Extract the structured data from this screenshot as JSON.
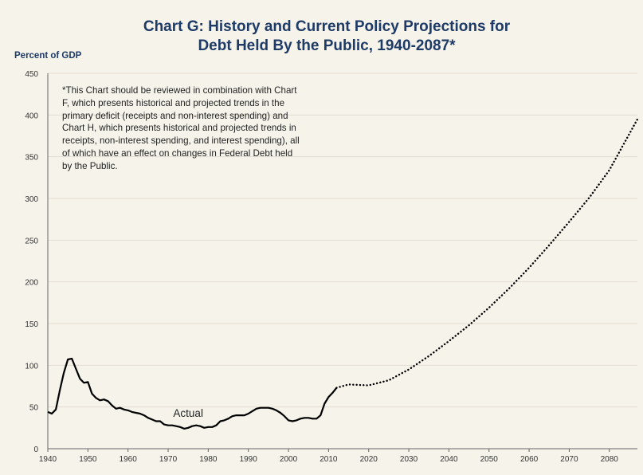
{
  "title_line1": "Chart G:  History and Current Policy Projections for",
  "title_line2": "Debt Held By the Public, 1940-2087*",
  "y_unit": "Percent of GDP",
  "note": "*This Chart should be reviewed in combination with Chart F, which presents historical and projected trends in the primary deficit (receipts and non-interest spending) and Chart H, which presents historical and projected trends in receipts,  non-interest spending, and interest spending), all of which have an effect on  changes in Federal Debt held by the Public.",
  "colors": {
    "background": "#f6f3ea",
    "title": "#1e3a66",
    "line": "#000000",
    "grid": "#e1ddd2",
    "axis": "#666666"
  },
  "chart_data": {
    "type": "line",
    "title": "Chart G:  History and Current Policy Projections for Debt Held By the Public, 1940-2087*",
    "ylabel": "Percent of GDP",
    "xlabel": "",
    "xlim": [
      1940,
      2087
    ],
    "ylim": [
      0,
      450
    ],
    "x_ticks": [
      1940,
      1950,
      1960,
      1970,
      1980,
      1990,
      2000,
      2010,
      2020,
      2030,
      2040,
      2050,
      2060,
      2070,
      2080
    ],
    "y_ticks": [
      0,
      50,
      100,
      150,
      200,
      250,
      300,
      350,
      400,
      450
    ],
    "grid": true,
    "annotations": [
      {
        "text": "Actual",
        "x": 1975,
        "y": 38
      }
    ],
    "series": [
      {
        "name": "Actual",
        "style": "solid",
        "x": [
          1940,
          1941,
          1942,
          1943,
          1944,
          1945,
          1946,
          1947,
          1948,
          1949,
          1950,
          1951,
          1952,
          1953,
          1954,
          1955,
          1956,
          1957,
          1958,
          1959,
          1960,
          1961,
          1962,
          1963,
          1964,
          1965,
          1966,
          1967,
          1968,
          1969,
          1970,
          1971,
          1972,
          1973,
          1974,
          1975,
          1976,
          1977,
          1978,
          1979,
          1980,
          1981,
          1982,
          1983,
          1984,
          1985,
          1986,
          1987,
          1988,
          1989,
          1990,
          1991,
          1992,
          1993,
          1994,
          1995,
          1996,
          1997,
          1998,
          1999,
          2000,
          2001,
          2002,
          2003,
          2004,
          2005,
          2006,
          2007,
          2008,
          2009,
          2010,
          2011,
          2012
        ],
        "y": [
          44,
          42,
          47,
          70,
          91,
          107,
          108,
          96,
          84,
          79,
          80,
          66,
          61,
          58,
          59,
          57,
          52,
          48,
          49,
          47,
          46,
          44,
          43,
          42,
          40,
          37,
          35,
          33,
          33,
          29,
          28,
          28,
          27,
          26,
          24,
          25,
          27,
          28,
          27,
          25,
          26,
          26,
          28,
          33,
          34,
          36,
          39,
          40,
          40,
          40,
          42,
          45,
          48,
          49,
          49,
          49,
          48,
          46,
          43,
          39,
          34,
          33,
          34,
          36,
          37,
          37,
          36,
          36,
          40,
          54,
          62,
          67,
          73
        ]
      },
      {
        "name": "Projected",
        "style": "dotted",
        "x": [
          2012,
          2015,
          2020,
          2025,
          2030,
          2035,
          2040,
          2045,
          2050,
          2055,
          2060,
          2065,
          2070,
          2075,
          2080,
          2087
        ],
        "y": [
          73,
          77,
          76,
          82,
          95,
          111,
          129,
          148,
          169,
          192,
          217,
          244,
          272,
          301,
          334,
          395
        ]
      }
    ]
  }
}
